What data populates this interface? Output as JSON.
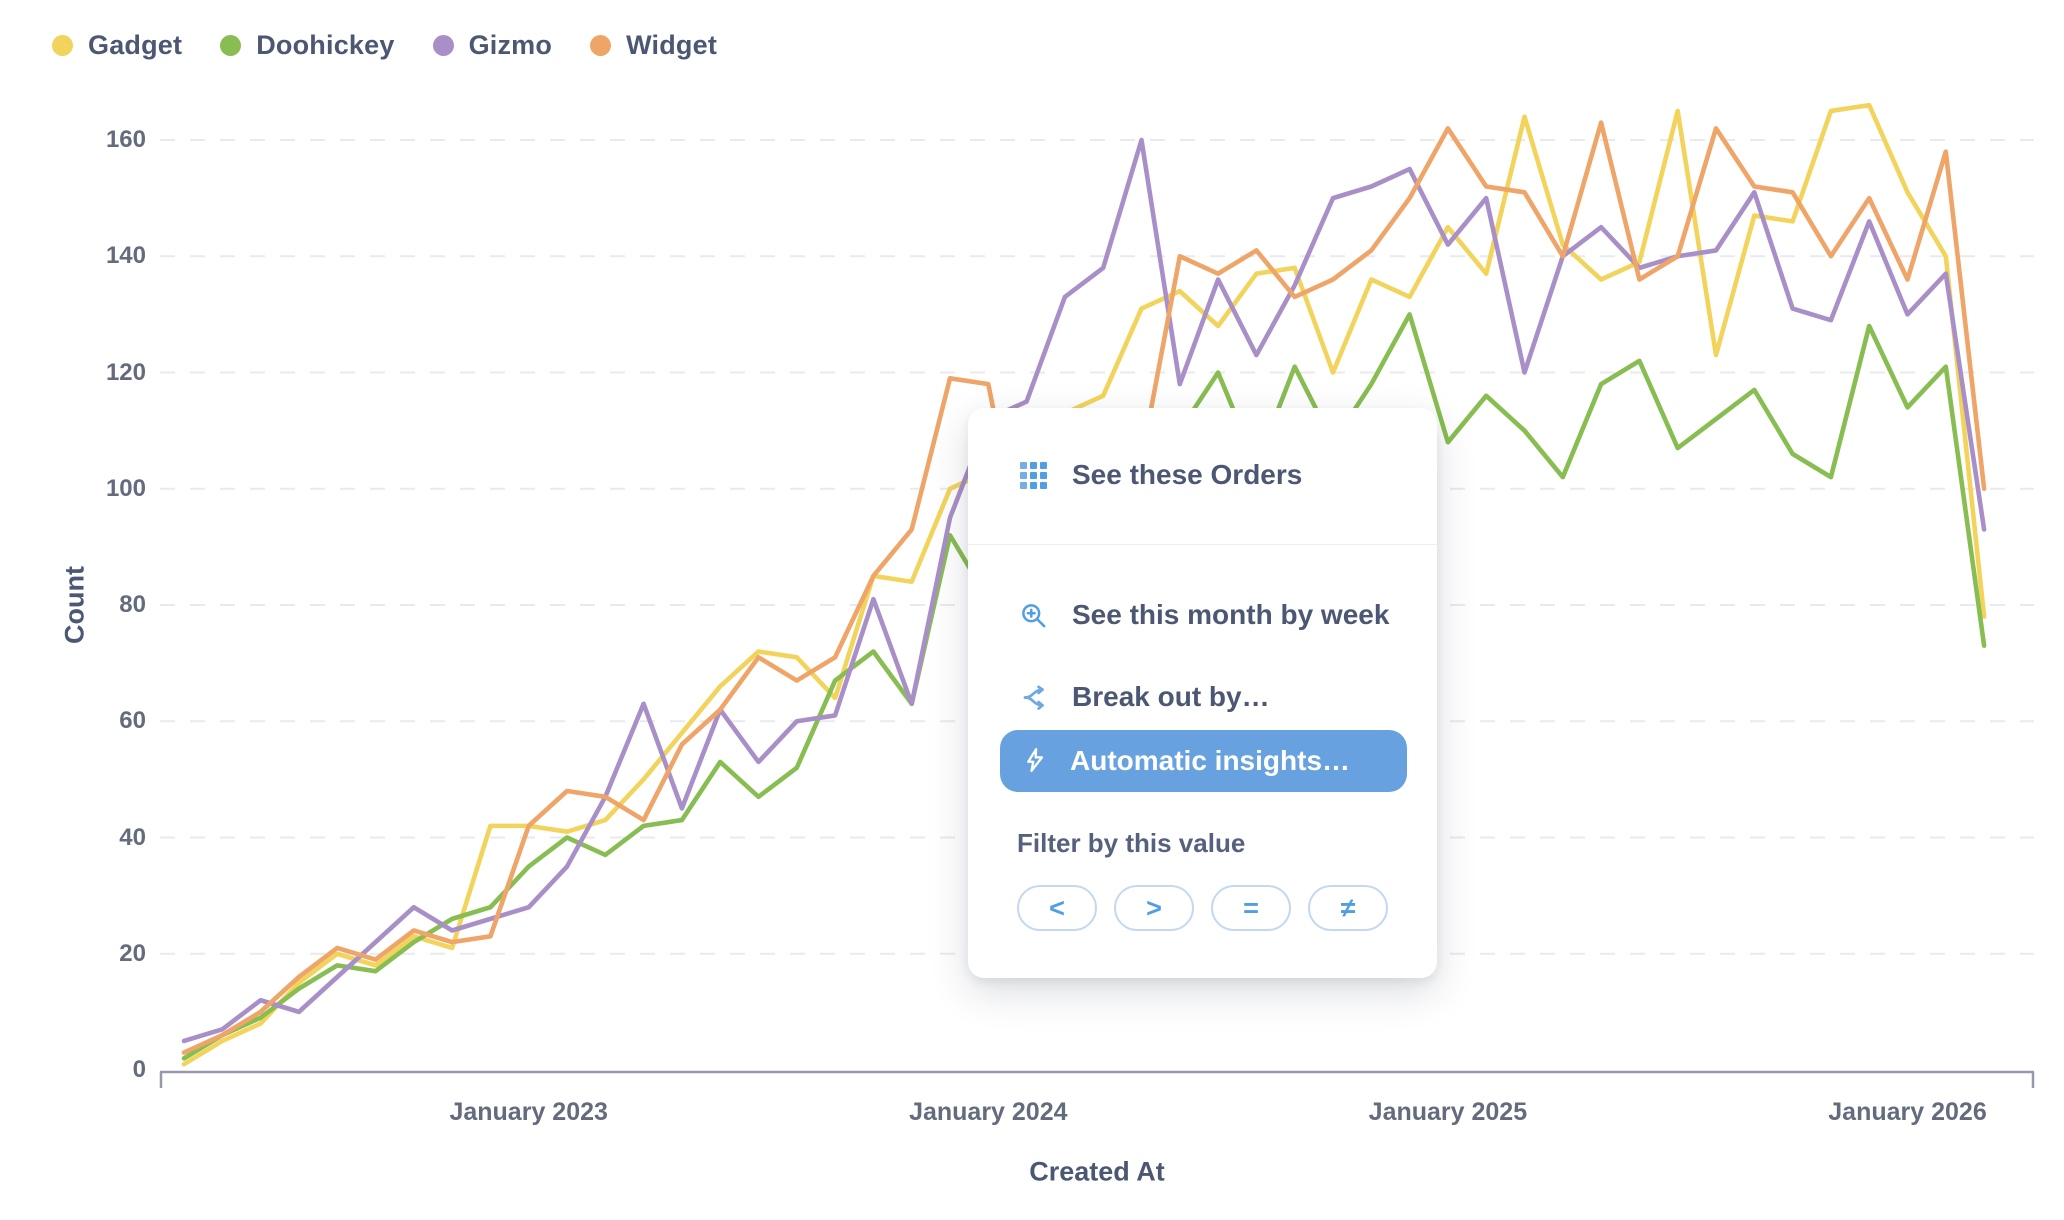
{
  "legend": {
    "items": [
      {
        "label": "Gadget",
        "color": "#F2D45C"
      },
      {
        "label": "Doohickey",
        "color": "#88BD52"
      },
      {
        "label": "Gizmo",
        "color": "#A98FC7"
      },
      {
        "label": "Widget",
        "color": "#EFA468"
      }
    ]
  },
  "chart_data": {
    "type": "line",
    "xlabel": "Created At",
    "ylabel": "Count",
    "interval": "month",
    "ylim": [
      0,
      160
    ],
    "y_ticks": [
      0,
      20,
      40,
      60,
      80,
      100,
      120,
      140,
      160
    ],
    "x_tick_labels": [
      "January 2023",
      "January 2024",
      "January 2025",
      "January 2026"
    ],
    "x_tick_indices": [
      9,
      21,
      33,
      45
    ],
    "grid": "dashed-horizontal",
    "legend_position": "top-left",
    "series": [
      {
        "name": "Gadget",
        "color": "#F2D45C",
        "values": [
          1,
          5,
          8,
          15,
          20,
          18,
          23,
          21,
          42,
          42,
          41,
          43,
          50,
          58,
          66,
          72,
          71,
          64,
          85,
          84,
          100,
          103,
          93,
          113,
          116,
          131,
          134,
          128,
          137,
          138,
          120,
          136,
          133,
          145,
          137,
          164,
          142,
          136,
          139,
          165,
          123,
          147,
          146,
          165,
          166,
          151,
          140,
          78
        ]
      },
      {
        "name": "Doohickey",
        "color": "#88BD52",
        "values": [
          2,
          6,
          9,
          14,
          18,
          17,
          22,
          26,
          28,
          35,
          40,
          37,
          42,
          43,
          53,
          47,
          52,
          67,
          72,
          63,
          92,
          81,
          87,
          82,
          87,
          94,
          110,
          120,
          104,
          121,
          108,
          118,
          130,
          108,
          116,
          110,
          102,
          118,
          122,
          107,
          112,
          117,
          106,
          102,
          128,
          114,
          121,
          73
        ]
      },
      {
        "name": "Gizmo",
        "color": "#A98FC7",
        "values": [
          5,
          7,
          12,
          10,
          16,
          22,
          28,
          24,
          26,
          28,
          35,
          47,
          63,
          45,
          62,
          53,
          60,
          61,
          81,
          63,
          95,
          112,
          115,
          133,
          138,
          160,
          118,
          136,
          123,
          135,
          150,
          152,
          155,
          142,
          150,
          120,
          140,
          145,
          138,
          140,
          141,
          151,
          131,
          129,
          146,
          130,
          137,
          93
        ]
      },
      {
        "name": "Widget",
        "color": "#EFA468",
        "values": [
          3,
          6,
          10,
          16,
          21,
          19,
          24,
          22,
          23,
          42,
          48,
          47,
          43,
          56,
          62,
          71,
          67,
          71,
          85,
          93,
          119,
          118,
          85,
          84,
          100,
          105,
          140,
          137,
          141,
          133,
          136,
          141,
          150,
          162,
          152,
          151,
          140,
          163,
          136,
          140,
          162,
          152,
          151,
          140,
          150,
          136,
          158,
          100
        ]
      }
    ]
  },
  "popup": {
    "items": [
      {
        "label": "See these Orders",
        "icon": "table-grid-icon"
      },
      {
        "label": "See this month by week",
        "icon": "zoom-in-icon"
      },
      {
        "label": "Break out by…",
        "icon": "split-arrow-icon"
      },
      {
        "label": "Automatic insights…",
        "icon": "lightning-bolt-icon",
        "highlighted": true
      }
    ],
    "filter_section": {
      "label": "Filter by this value",
      "operators": [
        "<",
        ">",
        "=",
        "≠"
      ]
    }
  },
  "colors": {
    "accent_blue": "#509EE3",
    "button_blue": "#68A1E0",
    "text_slate": "#4C5773",
    "axis_line": "#949AAB",
    "gridline": "#E9EAED"
  }
}
